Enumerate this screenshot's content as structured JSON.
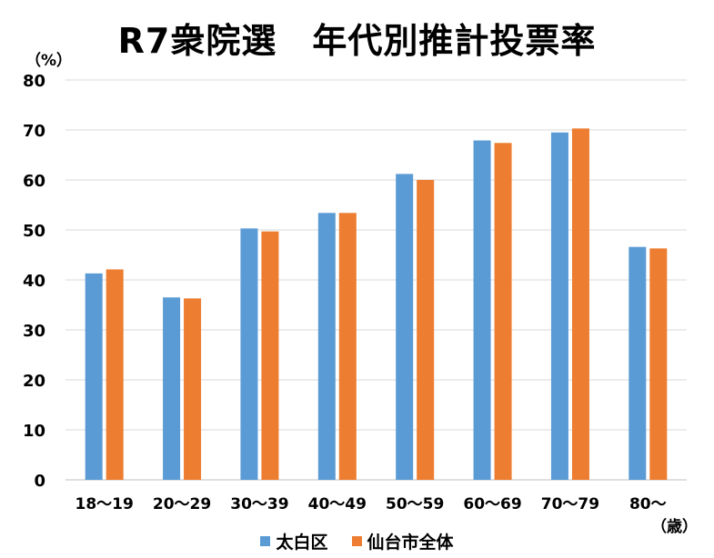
{
  "chart_data": {
    "type": "bar",
    "title": "R7衆院選　年代別推計投票率",
    "ylabel": "（%）",
    "xlabel": "（歳）",
    "ylim": [
      0,
      80
    ],
    "yticks": [
      0,
      10,
      20,
      30,
      40,
      50,
      60,
      70,
      80
    ],
    "grid": true,
    "legend_position": "bottom",
    "categories": [
      "18～19",
      "20～29",
      "30～39",
      "40～49",
      "50～59",
      "60～69",
      "70～79",
      "80～"
    ],
    "series": [
      {
        "name": "太白区",
        "color": "#5B9BD5",
        "values": [
          41.3,
          36.5,
          50.3,
          53.4,
          61.2,
          67.9,
          69.5,
          46.6
        ]
      },
      {
        "name": "仙台市全体",
        "color": "#ED7D31",
        "values": [
          42.1,
          36.3,
          49.7,
          53.4,
          60.0,
          67.4,
          70.3,
          46.3
        ]
      }
    ]
  }
}
